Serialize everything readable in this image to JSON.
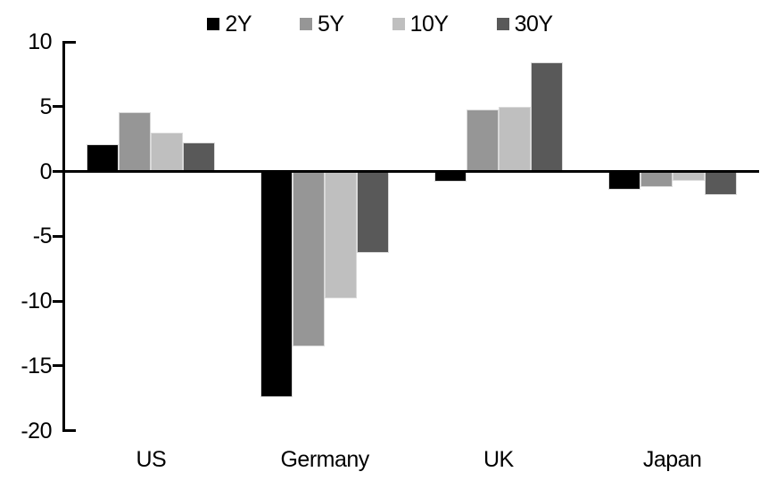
{
  "chart_data": {
    "type": "bar",
    "title": "",
    "xlabel": "",
    "ylabel": "",
    "categories": [
      "US",
      "Germany",
      "UK",
      "Japan"
    ],
    "series": [
      {
        "name": "2Y",
        "color": "#000000",
        "values": [
          2.1,
          -17.4,
          -0.8,
          -1.4
        ]
      },
      {
        "name": "5Y",
        "color": "#969696",
        "values": [
          4.6,
          -13.5,
          4.8,
          -1.2
        ]
      },
      {
        "name": "10Y",
        "color": "#BFBFBF",
        "values": [
          3.0,
          -9.8,
          5.0,
          -0.7
        ]
      },
      {
        "name": "30Y",
        "color": "#595959",
        "values": [
          2.2,
          -6.3,
          8.4,
          -1.8
        ]
      }
    ],
    "ylim": [
      -20,
      10
    ],
    "yticks": [
      10,
      5,
      0,
      -5,
      -10,
      -15,
      -20
    ],
    "ytick_labels": [
      "10",
      "5",
      "0",
      "-5",
      "-10",
      "-15",
      "-20"
    ],
    "grid": false,
    "legend_position": "top",
    "axis_color": "#000000",
    "background_color": "#ffffff"
  }
}
